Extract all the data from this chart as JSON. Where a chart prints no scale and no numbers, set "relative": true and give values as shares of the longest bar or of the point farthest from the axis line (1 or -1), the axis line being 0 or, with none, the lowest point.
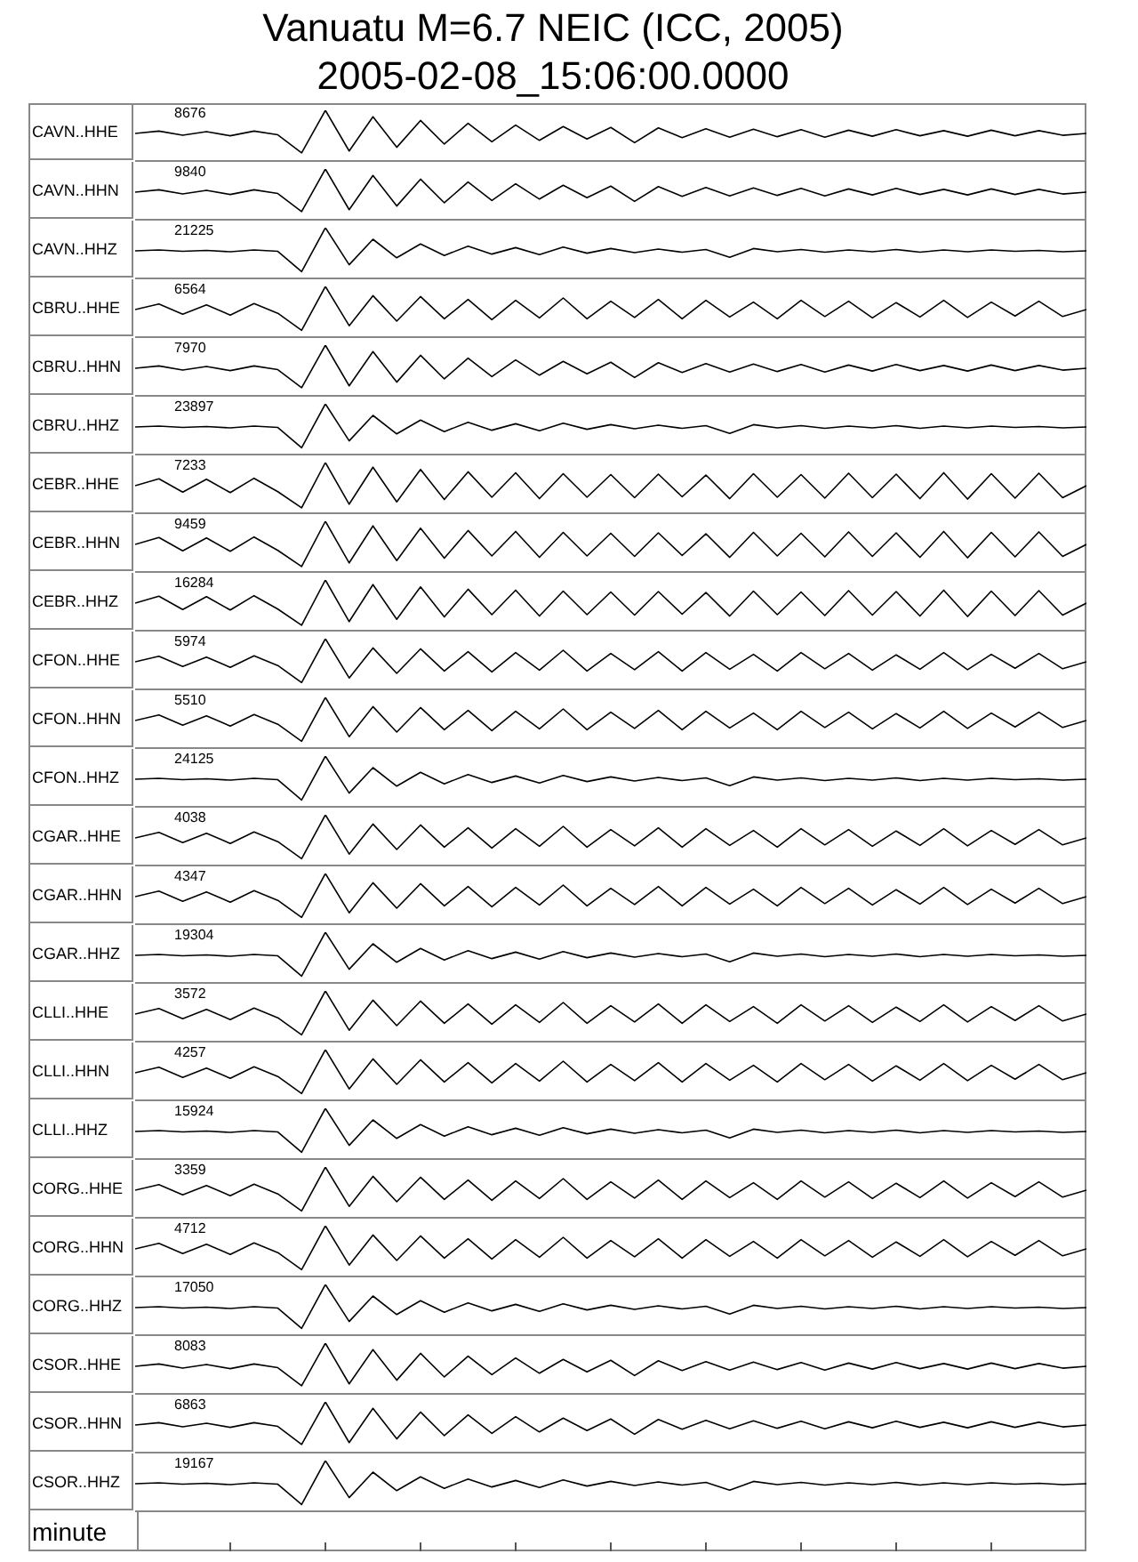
{
  "chart_data": [
    {
      "type": "line",
      "relative": true,
      "title": "Vanuatu M=6.7 NEIC (ICC, 2005)",
      "subtitle": "2005-02-08_15:06:00.0000",
      "ylabel": "CAVN..HHE",
      "annotations": [
        "8676"
      ],
      "categories": [
        null,
        null,
        null,
        null,
        null,
        null,
        null,
        null,
        null,
        null,
        null,
        null,
        null,
        null,
        null,
        null,
        null,
        null,
        null,
        null,
        null,
        null,
        null,
        null,
        null,
        null,
        null,
        null,
        null,
        null,
        null,
        null,
        null,
        null,
        null,
        null,
        null,
        null,
        null,
        null,
        null
      ],
      "color": "#000000",
      "values": [
        0.5,
        0.55,
        0.46,
        0.54,
        0.45,
        0.55,
        0.47,
        0.08,
        1,
        0.12,
        0.86,
        0.2,
        0.78,
        0.27,
        0.72,
        0.32,
        0.68,
        0.35,
        0.65,
        0.38,
        0.63,
        0.3,
        0.62,
        0.41,
        0.6,
        0.42,
        0.59,
        0.43,
        0.58,
        0.42,
        0.57,
        0.44,
        0.58,
        0.45,
        0.56,
        0.44,
        0.57,
        0.45,
        0.56,
        0.46,
        0.5
      ]
    },
    {
      "type": "line",
      "relative": true,
      "ylabel": "CAVN..HHN",
      "annotations": [
        "9840"
      ],
      "categories": [
        null,
        null,
        null,
        null,
        null,
        null,
        null,
        null,
        null,
        null,
        null,
        null,
        null,
        null,
        null,
        null,
        null,
        null,
        null,
        null,
        null,
        null,
        null,
        null,
        null,
        null,
        null,
        null,
        null,
        null,
        null,
        null,
        null,
        null,
        null,
        null,
        null,
        null,
        null,
        null,
        null
      ],
      "color": "#000000",
      "values": [
        0.5,
        0.55,
        0.46,
        0.54,
        0.45,
        0.55,
        0.47,
        0.08,
        1,
        0.12,
        0.86,
        0.2,
        0.78,
        0.27,
        0.72,
        0.32,
        0.68,
        0.35,
        0.65,
        0.38,
        0.63,
        0.3,
        0.62,
        0.41,
        0.6,
        0.42,
        0.59,
        0.43,
        0.58,
        0.42,
        0.57,
        0.44,
        0.58,
        0.45,
        0.56,
        0.44,
        0.57,
        0.45,
        0.56,
        0.46,
        0.5
      ]
    },
    {
      "type": "line",
      "relative": true,
      "ylabel": "CAVN..HHZ",
      "annotations": [
        "21225"
      ],
      "categories": [
        null,
        null,
        null,
        null,
        null,
        null,
        null,
        null,
        null,
        null,
        null,
        null,
        null,
        null,
        null,
        null,
        null,
        null,
        null,
        null,
        null,
        null,
        null,
        null,
        null,
        null,
        null,
        null,
        null,
        null,
        null,
        null,
        null,
        null,
        null,
        null,
        null,
        null,
        null,
        null,
        null
      ],
      "color": "#000000",
      "values": [
        0.5,
        0.52,
        0.49,
        0.51,
        0.48,
        0.52,
        0.49,
        0.05,
        1,
        0.2,
        0.75,
        0.35,
        0.65,
        0.4,
        0.6,
        0.43,
        0.57,
        0.42,
        0.58,
        0.45,
        0.55,
        0.46,
        0.54,
        0.47,
        0.53,
        0.36,
        0.55,
        0.48,
        0.53,
        0.47,
        0.52,
        0.48,
        0.53,
        0.47,
        0.52,
        0.48,
        0.52,
        0.49,
        0.51,
        0.48,
        0.5
      ]
    },
    {
      "type": "line",
      "relative": true,
      "ylabel": "CBRU..HHE",
      "annotations": [
        "6564"
      ],
      "categories": [
        null,
        null,
        null,
        null,
        null,
        null,
        null,
        null,
        null,
        null,
        null,
        null,
        null,
        null,
        null,
        null,
        null,
        null,
        null,
        null,
        null,
        null,
        null,
        null,
        null,
        null,
        null,
        null,
        null,
        null,
        null,
        null,
        null,
        null,
        null,
        null,
        null,
        null,
        null,
        null,
        null
      ],
      "color": "#000000",
      "values": [
        0.5,
        0.62,
        0.4,
        0.6,
        0.38,
        0.63,
        0.42,
        0.05,
        1,
        0.15,
        0.8,
        0.25,
        0.78,
        0.3,
        0.72,
        0.28,
        0.7,
        0.32,
        0.75,
        0.3,
        0.68,
        0.33,
        0.72,
        0.3,
        0.7,
        0.34,
        0.66,
        0.3,
        0.7,
        0.35,
        0.68,
        0.32,
        0.65,
        0.34,
        0.7,
        0.33,
        0.66,
        0.36,
        0.68,
        0.35,
        0.5
      ]
    },
    {
      "type": "line",
      "relative": true,
      "ylabel": "CBRU..HHN",
      "annotations": [
        "7970"
      ],
      "categories": [
        null,
        null,
        null,
        null,
        null,
        null,
        null,
        null,
        null,
        null,
        null,
        null,
        null,
        null,
        null,
        null,
        null,
        null,
        null,
        null,
        null,
        null,
        null,
        null,
        null,
        null,
        null,
        null,
        null,
        null,
        null,
        null,
        null,
        null,
        null,
        null,
        null,
        null,
        null,
        null,
        null
      ],
      "color": "#000000",
      "values": [
        0.5,
        0.55,
        0.46,
        0.54,
        0.45,
        0.55,
        0.47,
        0.08,
        1,
        0.12,
        0.86,
        0.2,
        0.78,
        0.27,
        0.72,
        0.32,
        0.68,
        0.35,
        0.65,
        0.38,
        0.63,
        0.3,
        0.62,
        0.41,
        0.6,
        0.42,
        0.59,
        0.43,
        0.58,
        0.42,
        0.57,
        0.44,
        0.58,
        0.45,
        0.56,
        0.44,
        0.57,
        0.45,
        0.56,
        0.46,
        0.5
      ]
    },
    {
      "type": "line",
      "relative": true,
      "ylabel": "CBRU..HHZ",
      "annotations": [
        "23897"
      ],
      "categories": [
        null,
        null,
        null,
        null,
        null,
        null,
        null,
        null,
        null,
        null,
        null,
        null,
        null,
        null,
        null,
        null,
        null,
        null,
        null,
        null,
        null,
        null,
        null,
        null,
        null,
        null,
        null,
        null,
        null,
        null,
        null,
        null,
        null,
        null,
        null,
        null,
        null,
        null,
        null,
        null,
        null
      ],
      "color": "#000000",
      "values": [
        0.5,
        0.52,
        0.49,
        0.51,
        0.48,
        0.52,
        0.49,
        0.05,
        1,
        0.2,
        0.75,
        0.35,
        0.65,
        0.4,
        0.6,
        0.43,
        0.57,
        0.42,
        0.58,
        0.45,
        0.55,
        0.46,
        0.54,
        0.47,
        0.53,
        0.36,
        0.55,
        0.48,
        0.53,
        0.47,
        0.52,
        0.48,
        0.53,
        0.47,
        0.52,
        0.48,
        0.52,
        0.49,
        0.51,
        0.48,
        0.5
      ]
    },
    {
      "type": "line",
      "relative": true,
      "ylabel": "CEBR..HHE",
      "annotations": [
        "7233"
      ],
      "categories": [
        null,
        null,
        null,
        null,
        null,
        null,
        null,
        null,
        null,
        null,
        null,
        null,
        null,
        null,
        null,
        null,
        null,
        null,
        null,
        null,
        null,
        null,
        null,
        null,
        null,
        null,
        null,
        null,
        null,
        null,
        null,
        null,
        null,
        null,
        null,
        null,
        null,
        null,
        null,
        null,
        null
      ],
      "color": "#000000",
      "values": [
        0.5,
        0.65,
        0.36,
        0.64,
        0.35,
        0.66,
        0.37,
        0.02,
        1,
        0.1,
        0.9,
        0.15,
        0.85,
        0.2,
        0.8,
        0.25,
        0.78,
        0.22,
        0.76,
        0.25,
        0.74,
        0.24,
        0.75,
        0.26,
        0.73,
        0.22,
        0.76,
        0.25,
        0.74,
        0.23,
        0.77,
        0.24,
        0.75,
        0.22,
        0.78,
        0.21,
        0.76,
        0.23,
        0.77,
        0.24,
        0.5
      ]
    },
    {
      "type": "line",
      "relative": true,
      "ylabel": "CEBR..HHN",
      "annotations": [
        "9459"
      ],
      "categories": [
        null,
        null,
        null,
        null,
        null,
        null,
        null,
        null,
        null,
        null,
        null,
        null,
        null,
        null,
        null,
        null,
        null,
        null,
        null,
        null,
        null,
        null,
        null,
        null,
        null,
        null,
        null,
        null,
        null,
        null,
        null,
        null,
        null,
        null,
        null,
        null,
        null,
        null,
        null,
        null,
        null
      ],
      "color": "#000000",
      "values": [
        0.5,
        0.65,
        0.36,
        0.64,
        0.35,
        0.66,
        0.37,
        0.02,
        1,
        0.1,
        0.9,
        0.15,
        0.85,
        0.2,
        0.8,
        0.25,
        0.78,
        0.22,
        0.76,
        0.25,
        0.74,
        0.24,
        0.75,
        0.26,
        0.73,
        0.22,
        0.76,
        0.25,
        0.74,
        0.23,
        0.77,
        0.24,
        0.75,
        0.22,
        0.78,
        0.21,
        0.76,
        0.23,
        0.77,
        0.24,
        0.5
      ]
    },
    {
      "type": "line",
      "relative": true,
      "ylabel": "CEBR..HHZ",
      "annotations": [
        "16284"
      ],
      "categories": [
        null,
        null,
        null,
        null,
        null,
        null,
        null,
        null,
        null,
        null,
        null,
        null,
        null,
        null,
        null,
        null,
        null,
        null,
        null,
        null,
        null,
        null,
        null,
        null,
        null,
        null,
        null,
        null,
        null,
        null,
        null,
        null,
        null,
        null,
        null,
        null,
        null,
        null,
        null,
        null,
        null
      ],
      "color": "#000000",
      "values": [
        0.5,
        0.65,
        0.36,
        0.64,
        0.35,
        0.66,
        0.37,
        0.02,
        1,
        0.1,
        0.9,
        0.15,
        0.85,
        0.2,
        0.8,
        0.25,
        0.78,
        0.22,
        0.76,
        0.25,
        0.74,
        0.24,
        0.75,
        0.26,
        0.73,
        0.22,
        0.76,
        0.25,
        0.74,
        0.23,
        0.77,
        0.24,
        0.75,
        0.22,
        0.78,
        0.21,
        0.76,
        0.23,
        0.77,
        0.24,
        0.5
      ]
    },
    {
      "type": "line",
      "relative": true,
      "ylabel": "CFON..HHE",
      "annotations": [
        "5974"
      ],
      "categories": [
        null,
        null,
        null,
        null,
        null,
        null,
        null,
        null,
        null,
        null,
        null,
        null,
        null,
        null,
        null,
        null,
        null,
        null,
        null,
        null,
        null,
        null,
        null,
        null,
        null,
        null,
        null,
        null,
        null,
        null,
        null,
        null,
        null,
        null,
        null,
        null,
        null,
        null,
        null,
        null,
        null
      ],
      "color": "#000000",
      "values": [
        0.5,
        0.62,
        0.4,
        0.6,
        0.38,
        0.63,
        0.42,
        0.05,
        1,
        0.15,
        0.8,
        0.25,
        0.78,
        0.3,
        0.72,
        0.28,
        0.7,
        0.32,
        0.75,
        0.3,
        0.68,
        0.33,
        0.72,
        0.3,
        0.7,
        0.34,
        0.66,
        0.3,
        0.7,
        0.35,
        0.68,
        0.32,
        0.65,
        0.34,
        0.7,
        0.33,
        0.66,
        0.36,
        0.68,
        0.35,
        0.5
      ]
    },
    {
      "type": "line",
      "relative": true,
      "ylabel": "CFON..HHN",
      "annotations": [
        "5510"
      ],
      "categories": [
        null,
        null,
        null,
        null,
        null,
        null,
        null,
        null,
        null,
        null,
        null,
        null,
        null,
        null,
        null,
        null,
        null,
        null,
        null,
        null,
        null,
        null,
        null,
        null,
        null,
        null,
        null,
        null,
        null,
        null,
        null,
        null,
        null,
        null,
        null,
        null,
        null,
        null,
        null,
        null,
        null
      ],
      "color": "#000000",
      "values": [
        0.5,
        0.62,
        0.4,
        0.6,
        0.38,
        0.63,
        0.42,
        0.05,
        1,
        0.15,
        0.8,
        0.25,
        0.78,
        0.3,
        0.72,
        0.28,
        0.7,
        0.32,
        0.75,
        0.3,
        0.68,
        0.33,
        0.72,
        0.3,
        0.7,
        0.34,
        0.66,
        0.3,
        0.7,
        0.35,
        0.68,
        0.32,
        0.65,
        0.34,
        0.7,
        0.33,
        0.66,
        0.36,
        0.68,
        0.35,
        0.5
      ]
    },
    {
      "type": "line",
      "relative": true,
      "ylabel": "CFON..HHZ",
      "annotations": [
        "24125"
      ],
      "categories": [
        null,
        null,
        null,
        null,
        null,
        null,
        null,
        null,
        null,
        null,
        null,
        null,
        null,
        null,
        null,
        null,
        null,
        null,
        null,
        null,
        null,
        null,
        null,
        null,
        null,
        null,
        null,
        null,
        null,
        null,
        null,
        null,
        null,
        null,
        null,
        null,
        null,
        null,
        null,
        null,
        null
      ],
      "color": "#000000",
      "values": [
        0.5,
        0.52,
        0.49,
        0.51,
        0.48,
        0.52,
        0.49,
        0.05,
        1,
        0.2,
        0.75,
        0.35,
        0.65,
        0.4,
        0.6,
        0.43,
        0.57,
        0.42,
        0.58,
        0.45,
        0.55,
        0.46,
        0.54,
        0.47,
        0.53,
        0.36,
        0.55,
        0.48,
        0.53,
        0.47,
        0.52,
        0.48,
        0.53,
        0.47,
        0.52,
        0.48,
        0.52,
        0.49,
        0.51,
        0.48,
        0.5
      ]
    },
    {
      "type": "line",
      "relative": true,
      "ylabel": "CGAR..HHE",
      "annotations": [
        "4038"
      ],
      "categories": [
        null,
        null,
        null,
        null,
        null,
        null,
        null,
        null,
        null,
        null,
        null,
        null,
        null,
        null,
        null,
        null,
        null,
        null,
        null,
        null,
        null,
        null,
        null,
        null,
        null,
        null,
        null,
        null,
        null,
        null,
        null,
        null,
        null,
        null,
        null,
        null,
        null,
        null,
        null,
        null,
        null
      ],
      "color": "#000000",
      "values": [
        0.5,
        0.62,
        0.4,
        0.6,
        0.38,
        0.63,
        0.42,
        0.05,
        1,
        0.15,
        0.8,
        0.25,
        0.78,
        0.3,
        0.72,
        0.28,
        0.7,
        0.32,
        0.75,
        0.3,
        0.68,
        0.33,
        0.72,
        0.3,
        0.7,
        0.34,
        0.66,
        0.3,
        0.7,
        0.35,
        0.68,
        0.32,
        0.65,
        0.34,
        0.7,
        0.33,
        0.66,
        0.36,
        0.68,
        0.35,
        0.5
      ]
    },
    {
      "type": "line",
      "relative": true,
      "ylabel": "CGAR..HHN",
      "annotations": [
        "4347"
      ],
      "categories": [
        null,
        null,
        null,
        null,
        null,
        null,
        null,
        null,
        null,
        null,
        null,
        null,
        null,
        null,
        null,
        null,
        null,
        null,
        null,
        null,
        null,
        null,
        null,
        null,
        null,
        null,
        null,
        null,
        null,
        null,
        null,
        null,
        null,
        null,
        null,
        null,
        null,
        null,
        null,
        null,
        null
      ],
      "color": "#000000",
      "values": [
        0.5,
        0.62,
        0.4,
        0.6,
        0.38,
        0.63,
        0.42,
        0.05,
        1,
        0.15,
        0.8,
        0.25,
        0.78,
        0.3,
        0.72,
        0.28,
        0.7,
        0.32,
        0.75,
        0.3,
        0.68,
        0.33,
        0.72,
        0.3,
        0.7,
        0.34,
        0.66,
        0.3,
        0.7,
        0.35,
        0.68,
        0.32,
        0.65,
        0.34,
        0.7,
        0.33,
        0.66,
        0.36,
        0.68,
        0.35,
        0.5
      ]
    },
    {
      "type": "line",
      "relative": true,
      "ylabel": "CGAR..HHZ",
      "annotations": [
        "19304"
      ],
      "categories": [
        null,
        null,
        null,
        null,
        null,
        null,
        null,
        null,
        null,
        null,
        null,
        null,
        null,
        null,
        null,
        null,
        null,
        null,
        null,
        null,
        null,
        null,
        null,
        null,
        null,
        null,
        null,
        null,
        null,
        null,
        null,
        null,
        null,
        null,
        null,
        null,
        null,
        null,
        null,
        null,
        null
      ],
      "color": "#000000",
      "values": [
        0.5,
        0.52,
        0.49,
        0.51,
        0.48,
        0.52,
        0.49,
        0.05,
        1,
        0.2,
        0.75,
        0.35,
        0.65,
        0.4,
        0.6,
        0.43,
        0.57,
        0.42,
        0.58,
        0.45,
        0.55,
        0.46,
        0.54,
        0.47,
        0.53,
        0.36,
        0.55,
        0.48,
        0.53,
        0.47,
        0.52,
        0.48,
        0.53,
        0.47,
        0.52,
        0.48,
        0.52,
        0.49,
        0.51,
        0.48,
        0.5
      ]
    },
    {
      "type": "line",
      "relative": true,
      "ylabel": "CLLI..HHE",
      "annotations": [
        "3572"
      ],
      "categories": [
        null,
        null,
        null,
        null,
        null,
        null,
        null,
        null,
        null,
        null,
        null,
        null,
        null,
        null,
        null,
        null,
        null,
        null,
        null,
        null,
        null,
        null,
        null,
        null,
        null,
        null,
        null,
        null,
        null,
        null,
        null,
        null,
        null,
        null,
        null,
        null,
        null,
        null,
        null,
        null,
        null
      ],
      "color": "#000000",
      "values": [
        0.5,
        0.62,
        0.4,
        0.6,
        0.38,
        0.63,
        0.42,
        0.05,
        1,
        0.15,
        0.8,
        0.25,
        0.78,
        0.3,
        0.72,
        0.28,
        0.7,
        0.32,
        0.75,
        0.3,
        0.68,
        0.33,
        0.72,
        0.3,
        0.7,
        0.34,
        0.66,
        0.3,
        0.7,
        0.35,
        0.68,
        0.32,
        0.65,
        0.34,
        0.7,
        0.33,
        0.66,
        0.36,
        0.68,
        0.35,
        0.5
      ]
    },
    {
      "type": "line",
      "relative": true,
      "ylabel": "CLLI..HHN",
      "annotations": [
        "4257"
      ],
      "categories": [
        null,
        null,
        null,
        null,
        null,
        null,
        null,
        null,
        null,
        null,
        null,
        null,
        null,
        null,
        null,
        null,
        null,
        null,
        null,
        null,
        null,
        null,
        null,
        null,
        null,
        null,
        null,
        null,
        null,
        null,
        null,
        null,
        null,
        null,
        null,
        null,
        null,
        null,
        null,
        null,
        null
      ],
      "color": "#000000",
      "values": [
        0.5,
        0.62,
        0.4,
        0.6,
        0.38,
        0.63,
        0.42,
        0.05,
        1,
        0.15,
        0.8,
        0.25,
        0.78,
        0.3,
        0.72,
        0.28,
        0.7,
        0.32,
        0.75,
        0.3,
        0.68,
        0.33,
        0.72,
        0.3,
        0.7,
        0.34,
        0.66,
        0.3,
        0.7,
        0.35,
        0.68,
        0.32,
        0.65,
        0.34,
        0.7,
        0.33,
        0.66,
        0.36,
        0.68,
        0.35,
        0.5
      ]
    },
    {
      "type": "line",
      "relative": true,
      "ylabel": "CLLI..HHZ",
      "annotations": [
        "15924"
      ],
      "categories": [
        null,
        null,
        null,
        null,
        null,
        null,
        null,
        null,
        null,
        null,
        null,
        null,
        null,
        null,
        null,
        null,
        null,
        null,
        null,
        null,
        null,
        null,
        null,
        null,
        null,
        null,
        null,
        null,
        null,
        null,
        null,
        null,
        null,
        null,
        null,
        null,
        null,
        null,
        null,
        null,
        null
      ],
      "color": "#000000",
      "values": [
        0.5,
        0.52,
        0.49,
        0.51,
        0.48,
        0.52,
        0.49,
        0.05,
        1,
        0.2,
        0.75,
        0.35,
        0.65,
        0.4,
        0.6,
        0.43,
        0.57,
        0.42,
        0.58,
        0.45,
        0.55,
        0.46,
        0.54,
        0.47,
        0.53,
        0.36,
        0.55,
        0.48,
        0.53,
        0.47,
        0.52,
        0.48,
        0.53,
        0.47,
        0.52,
        0.48,
        0.52,
        0.49,
        0.51,
        0.48,
        0.5
      ]
    },
    {
      "type": "line",
      "relative": true,
      "ylabel": "CORG..HHE",
      "annotations": [
        "3359"
      ],
      "categories": [
        null,
        null,
        null,
        null,
        null,
        null,
        null,
        null,
        null,
        null,
        null,
        null,
        null,
        null,
        null,
        null,
        null,
        null,
        null,
        null,
        null,
        null,
        null,
        null,
        null,
        null,
        null,
        null,
        null,
        null,
        null,
        null,
        null,
        null,
        null,
        null,
        null,
        null,
        null,
        null,
        null
      ],
      "color": "#000000",
      "values": [
        0.5,
        0.62,
        0.4,
        0.6,
        0.38,
        0.63,
        0.42,
        0.05,
        1,
        0.15,
        0.8,
        0.25,
        0.78,
        0.3,
        0.72,
        0.28,
        0.7,
        0.32,
        0.75,
        0.3,
        0.68,
        0.33,
        0.72,
        0.3,
        0.7,
        0.34,
        0.66,
        0.3,
        0.7,
        0.35,
        0.68,
        0.32,
        0.65,
        0.34,
        0.7,
        0.33,
        0.66,
        0.36,
        0.68,
        0.35,
        0.5
      ]
    },
    {
      "type": "line",
      "relative": true,
      "ylabel": "CORG..HHN",
      "annotations": [
        "4712"
      ],
      "categories": [
        null,
        null,
        null,
        null,
        null,
        null,
        null,
        null,
        null,
        null,
        null,
        null,
        null,
        null,
        null,
        null,
        null,
        null,
        null,
        null,
        null,
        null,
        null,
        null,
        null,
        null,
        null,
        null,
        null,
        null,
        null,
        null,
        null,
        null,
        null,
        null,
        null,
        null,
        null,
        null,
        null
      ],
      "color": "#000000",
      "values": [
        0.5,
        0.62,
        0.4,
        0.6,
        0.38,
        0.63,
        0.42,
        0.05,
        1,
        0.15,
        0.8,
        0.25,
        0.78,
        0.3,
        0.72,
        0.28,
        0.7,
        0.32,
        0.75,
        0.3,
        0.68,
        0.33,
        0.72,
        0.3,
        0.7,
        0.34,
        0.66,
        0.3,
        0.7,
        0.35,
        0.68,
        0.32,
        0.65,
        0.34,
        0.7,
        0.33,
        0.66,
        0.36,
        0.68,
        0.35,
        0.5
      ]
    },
    {
      "type": "line",
      "relative": true,
      "ylabel": "CORG..HHZ",
      "annotations": [
        "17050"
      ],
      "categories": [
        null,
        null,
        null,
        null,
        null,
        null,
        null,
        null,
        null,
        null,
        null,
        null,
        null,
        null,
        null,
        null,
        null,
        null,
        null,
        null,
        null,
        null,
        null,
        null,
        null,
        null,
        null,
        null,
        null,
        null,
        null,
        null,
        null,
        null,
        null,
        null,
        null,
        null,
        null,
        null,
        null
      ],
      "color": "#000000",
      "values": [
        0.5,
        0.52,
        0.49,
        0.51,
        0.48,
        0.52,
        0.49,
        0.05,
        1,
        0.2,
        0.75,
        0.35,
        0.65,
        0.4,
        0.6,
        0.43,
        0.57,
        0.42,
        0.58,
        0.45,
        0.55,
        0.46,
        0.54,
        0.47,
        0.53,
        0.36,
        0.55,
        0.48,
        0.53,
        0.47,
        0.52,
        0.48,
        0.53,
        0.47,
        0.52,
        0.48,
        0.52,
        0.49,
        0.51,
        0.48,
        0.5
      ]
    },
    {
      "type": "line",
      "relative": true,
      "ylabel": "CSOR..HHE",
      "annotations": [
        "8083"
      ],
      "categories": [
        null,
        null,
        null,
        null,
        null,
        null,
        null,
        null,
        null,
        null,
        null,
        null,
        null,
        null,
        null,
        null,
        null,
        null,
        null,
        null,
        null,
        null,
        null,
        null,
        null,
        null,
        null,
        null,
        null,
        null,
        null,
        null,
        null,
        null,
        null,
        null,
        null,
        null,
        null,
        null,
        null
      ],
      "color": "#000000",
      "values": [
        0.5,
        0.55,
        0.46,
        0.54,
        0.45,
        0.55,
        0.47,
        0.08,
        1,
        0.12,
        0.86,
        0.2,
        0.78,
        0.27,
        0.72,
        0.32,
        0.68,
        0.35,
        0.65,
        0.38,
        0.63,
        0.3,
        0.62,
        0.41,
        0.6,
        0.42,
        0.59,
        0.43,
        0.58,
        0.42,
        0.57,
        0.44,
        0.58,
        0.45,
        0.56,
        0.44,
        0.57,
        0.45,
        0.56,
        0.46,
        0.5
      ]
    },
    {
      "type": "line",
      "relative": true,
      "ylabel": "CSOR..HHN",
      "annotations": [
        "6863"
      ],
      "categories": [
        null,
        null,
        null,
        null,
        null,
        null,
        null,
        null,
        null,
        null,
        null,
        null,
        null,
        null,
        null,
        null,
        null,
        null,
        null,
        null,
        null,
        null,
        null,
        null,
        null,
        null,
        null,
        null,
        null,
        null,
        null,
        null,
        null,
        null,
        null,
        null,
        null,
        null,
        null,
        null,
        null
      ],
      "color": "#000000",
      "values": [
        0.5,
        0.55,
        0.46,
        0.54,
        0.45,
        0.55,
        0.47,
        0.08,
        1,
        0.12,
        0.86,
        0.2,
        0.78,
        0.27,
        0.72,
        0.32,
        0.68,
        0.35,
        0.65,
        0.38,
        0.63,
        0.3,
        0.62,
        0.41,
        0.6,
        0.42,
        0.59,
        0.43,
        0.58,
        0.42,
        0.57,
        0.44,
        0.58,
        0.45,
        0.56,
        0.44,
        0.57,
        0.45,
        0.56,
        0.46,
        0.5
      ]
    },
    {
      "type": "line",
      "relative": true,
      "ylabel": "CSOR..HHZ",
      "xlabel": "minute",
      "annotations": [
        "19167"
      ],
      "categories": [
        null,
        null,
        null,
        null,
        null,
        null,
        null,
        null,
        null,
        null,
        null,
        null,
        null,
        null,
        null,
        null,
        null,
        null,
        null,
        null,
        null,
        null,
        null,
        null,
        null,
        null,
        null,
        null,
        null,
        null,
        null,
        null,
        null,
        null,
        null,
        null,
        null,
        null,
        null,
        null,
        null
      ],
      "color": "#000000",
      "values": [
        0.5,
        0.52,
        0.49,
        0.51,
        0.48,
        0.52,
        0.49,
        0.05,
        1,
        0.2,
        0.75,
        0.35,
        0.65,
        0.4,
        0.6,
        0.43,
        0.57,
        0.42,
        0.58,
        0.45,
        0.55,
        0.46,
        0.54,
        0.47,
        0.53,
        0.36,
        0.55,
        0.48,
        0.53,
        0.47,
        0.52,
        0.48,
        0.53,
        0.47,
        0.52,
        0.48,
        0.52,
        0.49,
        0.51,
        0.48,
        0.5
      ]
    }
  ]
}
